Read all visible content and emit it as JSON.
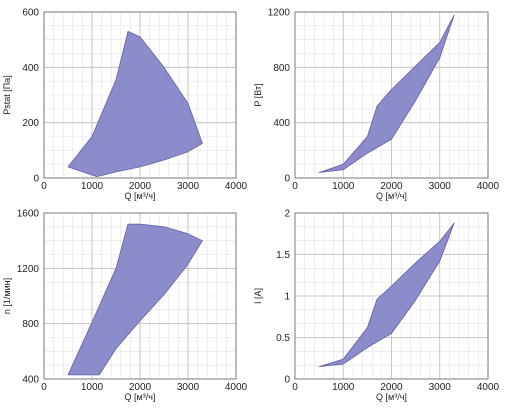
{
  "colors": {
    "fill": "#8c8cca",
    "stroke": "#5f5fa8",
    "grid_major": "#bdbdbd",
    "grid_minor": "#e3e3e3",
    "axis": "#7a7a7a",
    "background": "#ffffff"
  },
  "chart_data": [
    {
      "type": "area",
      "xlabel": "Q [м³/ч]",
      "ylabel": "Pstat [Па]",
      "xlim": [
        0,
        4000
      ],
      "ylim": [
        0,
        600
      ],
      "xticks": [
        "0",
        "1000",
        "2000",
        "3000",
        "4000"
      ],
      "yticks": [
        "0",
        "200",
        "400",
        "600"
      ],
      "grid": true,
      "polygon": [
        [
          500,
          40
        ],
        [
          1000,
          150
        ],
        [
          1500,
          355
        ],
        [
          1750,
          530
        ],
        [
          2000,
          510
        ],
        [
          2500,
          400
        ],
        [
          3000,
          270
        ],
        [
          3300,
          125
        ],
        [
          3000,
          95
        ],
        [
          2500,
          65
        ],
        [
          2000,
          40
        ],
        [
          1500,
          22
        ],
        [
          1100,
          5
        ],
        [
          500,
          40
        ]
      ]
    },
    {
      "type": "area",
      "xlabel": "Q [м³/ч]",
      "ylabel": "P [Вт]",
      "xlim": [
        0,
        4000
      ],
      "ylim": [
        0,
        1200
      ],
      "xticks": [
        "0",
        "1000",
        "2000",
        "3000",
        "4000"
      ],
      "yticks": [
        "0",
        "400",
        "800",
        "1200"
      ],
      "grid": true,
      "polygon": [
        [
          500,
          40
        ],
        [
          1000,
          100
        ],
        [
          1500,
          300
        ],
        [
          1700,
          520
        ],
        [
          2000,
          640
        ],
        [
          2500,
          810
        ],
        [
          3000,
          980
        ],
        [
          3300,
          1180
        ],
        [
          3000,
          870
        ],
        [
          2500,
          560
        ],
        [
          2000,
          280
        ],
        [
          1500,
          180
        ],
        [
          1000,
          60
        ],
        [
          500,
          40
        ]
      ]
    },
    {
      "type": "area",
      "xlabel": "Q [м³/ч]",
      "ylabel": "n [1/мин]",
      "xlim": [
        0,
        4000
      ],
      "ylim": [
        400,
        1600
      ],
      "xticks": [
        "0",
        "1000",
        "2000",
        "3000",
        "4000"
      ],
      "yticks": [
        "400",
        "800",
        "1200",
        "1600"
      ],
      "grid": true,
      "polygon": [
        [
          500,
          430
        ],
        [
          1000,
          810
        ],
        [
          1500,
          1200
        ],
        [
          1750,
          1520
        ],
        [
          2000,
          1520
        ],
        [
          2500,
          1500
        ],
        [
          3000,
          1450
        ],
        [
          3300,
          1400
        ],
        [
          3000,
          1230
        ],
        [
          2500,
          1010
        ],
        [
          2000,
          820
        ],
        [
          1500,
          620
        ],
        [
          1150,
          430
        ],
        [
          500,
          430
        ]
      ]
    },
    {
      "type": "area",
      "xlabel": "Q [м³/ч]",
      "ylabel": "I [A]",
      "xlim": [
        0,
        4000
      ],
      "ylim": [
        0,
        2
      ],
      "xticks": [
        "0",
        "1000",
        "2000",
        "3000",
        "4000"
      ],
      "yticks": [
        "0",
        "0.5",
        "1",
        "1.5",
        "2"
      ],
      "grid": true,
      "polygon": [
        [
          500,
          0.15
        ],
        [
          1000,
          0.24
        ],
        [
          1500,
          0.62
        ],
        [
          1700,
          0.96
        ],
        [
          2000,
          1.12
        ],
        [
          2500,
          1.4
        ],
        [
          3000,
          1.66
        ],
        [
          3300,
          1.88
        ],
        [
          3000,
          1.42
        ],
        [
          2500,
          0.95
        ],
        [
          2000,
          0.55
        ],
        [
          1500,
          0.38
        ],
        [
          1000,
          0.18
        ],
        [
          500,
          0.15
        ]
      ]
    }
  ]
}
